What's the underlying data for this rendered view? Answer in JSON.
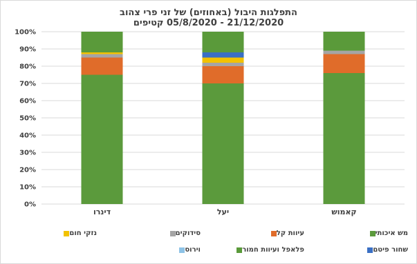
{
  "chart_data": {
    "type": "bar",
    "stacked": true,
    "title_lines": [
      "התפלגות היבול (באחוזים) של זני פרי צהוב",
      "21/12/2020 - 05/8/2020 קטיפים"
    ],
    "categories": [
      "דינרו",
      "יעל",
      "קאמוש"
    ],
    "ylim": [
      0,
      100
    ],
    "y_ticks": [
      "0%",
      "10%",
      "20%",
      "30%",
      "40%",
      "50%",
      "60%",
      "70%",
      "80%",
      "90%",
      "100%"
    ],
    "grid": true,
    "legend_position": "bottom",
    "series": [
      {
        "name": "מש איכותי",
        "color": "#5b9a3c",
        "values": [
          75,
          70,
          76
        ]
      },
      {
        "name": "עיוות קל",
        "color": "#e06c2a",
        "values": [
          10,
          10,
          11
        ]
      },
      {
        "name": "סידוקים",
        "color": "#a5a5a5",
        "values": [
          2,
          2,
          2
        ]
      },
      {
        "name": "נזקי חום",
        "color": "#f2c200",
        "values": [
          1,
          3,
          0
        ]
      },
      {
        "name": "שחור פיטם",
        "color": "#3a6fc4",
        "values": [
          0,
          3,
          0
        ]
      },
      {
        "name": "פלאפל ועיוות חמור",
        "color": "#5a9a3a",
        "values": [
          12,
          12,
          11
        ]
      },
      {
        "name": "וירוס",
        "color": "#8ec3e6",
        "values": [
          0,
          0,
          0
        ]
      }
    ]
  }
}
